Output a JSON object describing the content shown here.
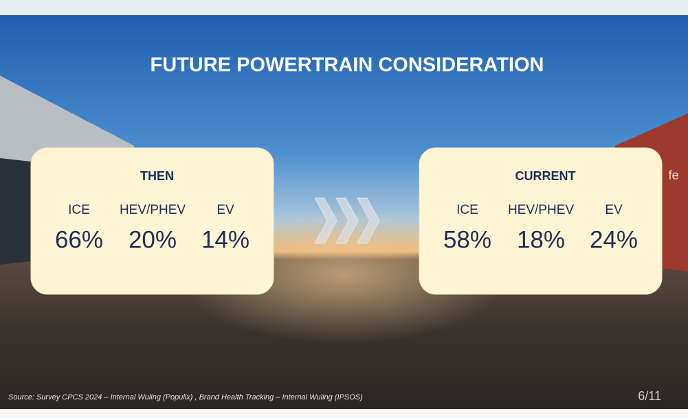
{
  "header": {
    "title": "FUTURE POWERTRAIN CONSIDERATION"
  },
  "panels": [
    {
      "heading": "THEN",
      "items": [
        {
          "label": "ICE",
          "value": "66%"
        },
        {
          "label": "HEV/PHEV",
          "value": "20%"
        },
        {
          "label": "EV",
          "value": "14%"
        }
      ]
    },
    {
      "heading": "CURRENT",
      "items": [
        {
          "label": "ICE",
          "value": "58%"
        },
        {
          "label": "HEV/PHEV",
          "value": "18%"
        },
        {
          "label": "EV",
          "value": "24%"
        }
      ]
    }
  ],
  "sign_text": "fe",
  "footer": {
    "source": "Source: Survey CPCS 2024 – Internal Wuling  (Populix) , Brand Health Tracking – Internal Wuling (IPSOS)",
    "page": "6/11"
  }
}
